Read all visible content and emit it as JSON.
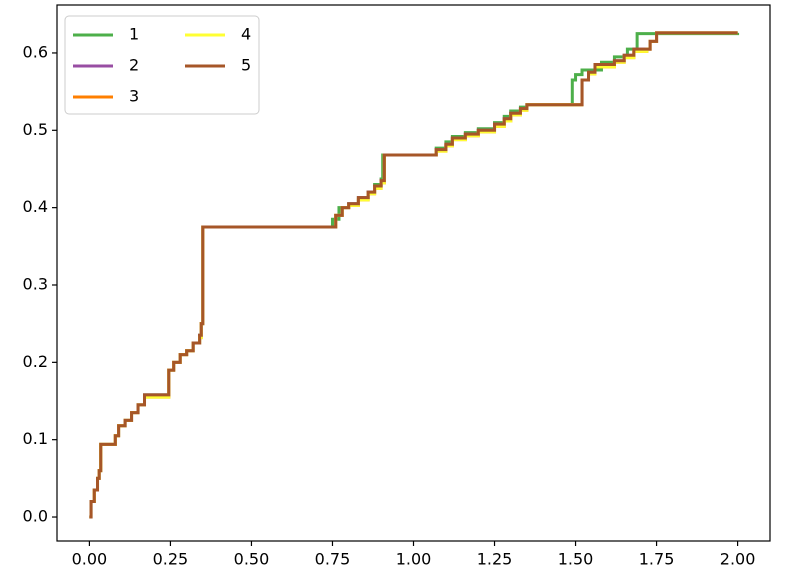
{
  "chart_data": {
    "type": "step",
    "xlim": [
      -0.1,
      2.1
    ],
    "ylim": [
      -0.031,
      0.662
    ],
    "xticks": [
      {
        "value": 0,
        "label": "0.00"
      },
      0.25,
      {
        "value": 0.5,
        "label": "0.50"
      },
      0.75,
      {
        "value": 1,
        "label": "1.00"
      },
      1.25,
      {
        "value": 1.5,
        "label": "1.50"
      },
      1.75,
      {
        "value": 2,
        "label": "2.00"
      }
    ],
    "yticks": [
      {
        "value": 0,
        "label": "0.0"
      },
      0.1,
      0.2,
      0.3,
      0.4,
      0.5,
      0.6
    ],
    "legend": "upper left",
    "series": [
      {
        "name": "1",
        "color": "#4daf4a",
        "x": [
          0,
          0.005,
          0.015,
          0.025,
          0.03,
          0.035,
          0.07,
          0.08,
          0.09,
          0.11,
          0.13,
          0.15,
          0.17,
          0.24,
          0.245,
          0.26,
          0.28,
          0.3,
          0.32,
          0.34,
          0.345,
          0.35,
          0.74,
          0.75,
          0.77,
          0.8,
          0.83,
          0.86,
          0.88,
          0.9,
          0.905,
          1.05,
          1.07,
          1.1,
          1.12,
          1.16,
          1.2,
          1.25,
          1.28,
          1.3,
          1.33,
          1.35,
          1.49,
          1.5,
          1.52,
          1.58,
          1.62,
          1.66,
          1.69,
          2.0
        ],
        "values": [
          0,
          0.02,
          0.035,
          0.05,
          0.06,
          0.094,
          0.094,
          0.105,
          0.118,
          0.125,
          0.135,
          0.145,
          0.158,
          0.158,
          0.19,
          0.2,
          0.21,
          0.215,
          0.225,
          0.235,
          0.25,
          0.375,
          0.375,
          0.385,
          0.4,
          0.405,
          0.413,
          0.42,
          0.43,
          0.437,
          0.468,
          0.468,
          0.477,
          0.485,
          0.492,
          0.497,
          0.502,
          0.51,
          0.518,
          0.525,
          0.53,
          0.533,
          0.565,
          0.572,
          0.578,
          0.588,
          0.595,
          0.605,
          0.625,
          0.626
        ]
      },
      {
        "name": "2",
        "color": "#984ea3",
        "x": [
          0,
          0.005,
          0.015,
          0.025,
          0.03,
          0.035,
          0.07,
          0.08,
          0.09,
          0.11,
          0.13,
          0.15,
          0.17,
          0.24,
          0.245,
          0.26,
          0.28,
          0.3,
          0.32,
          0.34,
          0.345,
          0.35,
          0.74,
          0.76,
          0.78,
          0.8,
          0.83,
          0.86,
          0.88,
          0.9,
          0.91,
          1.05,
          1.07,
          1.1,
          1.12,
          1.16,
          1.2,
          1.25,
          1.28,
          1.3,
          1.33,
          1.35,
          1.51,
          1.52,
          1.54,
          1.56,
          1.62,
          1.65,
          1.68,
          1.72,
          1.73,
          1.75,
          2.0
        ],
        "values": [
          0,
          0.02,
          0.035,
          0.05,
          0.06,
          0.094,
          0.094,
          0.105,
          0.118,
          0.125,
          0.135,
          0.145,
          0.158,
          0.158,
          0.19,
          0.2,
          0.21,
          0.215,
          0.225,
          0.235,
          0.25,
          0.375,
          0.375,
          0.39,
          0.4,
          0.405,
          0.413,
          0.42,
          0.428,
          0.435,
          0.468,
          0.468,
          0.475,
          0.482,
          0.49,
          0.495,
          0.5,
          0.508,
          0.515,
          0.522,
          0.528,
          0.533,
          0.533,
          0.565,
          0.575,
          0.585,
          0.59,
          0.597,
          0.605,
          0.605,
          0.615,
          0.626,
          0.626
        ]
      },
      {
        "name": "3",
        "color": "#ff7f00",
        "x": [
          0,
          0.005,
          0.015,
          0.025,
          0.03,
          0.035,
          0.07,
          0.08,
          0.09,
          0.11,
          0.13,
          0.15,
          0.17,
          0.24,
          0.245,
          0.26,
          0.28,
          0.3,
          0.32,
          0.34,
          0.345,
          0.35,
          0.74,
          0.76,
          0.78,
          0.8,
          0.83,
          0.86,
          0.88,
          0.9,
          0.91,
          1.05,
          1.07,
          1.1,
          1.12,
          1.16,
          1.2,
          1.25,
          1.28,
          1.3,
          1.33,
          1.35,
          1.51,
          1.52,
          1.54,
          1.56,
          1.62,
          1.65,
          1.68,
          1.72,
          1.73,
          1.75,
          2.0
        ],
        "values": [
          0,
          0.02,
          0.035,
          0.05,
          0.06,
          0.094,
          0.094,
          0.105,
          0.118,
          0.125,
          0.135,
          0.145,
          0.155,
          0.155,
          0.19,
          0.2,
          0.21,
          0.215,
          0.225,
          0.232,
          0.25,
          0.375,
          0.375,
          0.39,
          0.4,
          0.403,
          0.41,
          0.418,
          0.425,
          0.432,
          0.468,
          0.468,
          0.473,
          0.48,
          0.488,
          0.493,
          0.498,
          0.505,
          0.512,
          0.52,
          0.526,
          0.533,
          0.533,
          0.565,
          0.573,
          0.582,
          0.588,
          0.594,
          0.602,
          0.605,
          0.615,
          0.626,
          0.626
        ]
      },
      {
        "name": "4",
        "color": "#ffff33",
        "x": [
          0,
          0.005,
          0.015,
          0.025,
          0.03,
          0.035,
          0.07,
          0.08,
          0.09,
          0.11,
          0.13,
          0.15,
          0.17,
          0.24,
          0.245,
          0.26,
          0.28,
          0.3,
          0.32,
          0.34,
          0.345,
          0.35,
          0.74,
          0.76,
          0.78,
          0.8,
          0.83,
          0.86,
          0.88,
          0.9,
          0.91,
          1.05,
          1.07,
          1.1,
          1.12,
          1.16,
          1.2,
          1.25,
          1.28,
          1.3,
          1.33,
          1.35,
          1.51,
          1.52,
          1.54,
          1.56,
          1.62,
          1.65,
          1.68,
          1.72,
          1.73,
          1.75,
          2.0
        ],
        "values": [
          0,
          0.02,
          0.035,
          0.05,
          0.06,
          0.094,
          0.094,
          0.105,
          0.118,
          0.125,
          0.135,
          0.145,
          0.155,
          0.155,
          0.19,
          0.2,
          0.21,
          0.215,
          0.225,
          0.232,
          0.25,
          0.375,
          0.375,
          0.39,
          0.4,
          0.403,
          0.41,
          0.418,
          0.425,
          0.432,
          0.468,
          0.468,
          0.473,
          0.48,
          0.488,
          0.493,
          0.498,
          0.505,
          0.512,
          0.52,
          0.526,
          0.533,
          0.533,
          0.565,
          0.573,
          0.582,
          0.588,
          0.594,
          0.602,
          0.605,
          0.615,
          0.626,
          0.626
        ]
      },
      {
        "name": "5",
        "color": "#a65628",
        "x": [
          0,
          0.005,
          0.015,
          0.025,
          0.03,
          0.035,
          0.07,
          0.08,
          0.09,
          0.11,
          0.13,
          0.15,
          0.17,
          0.24,
          0.245,
          0.26,
          0.28,
          0.3,
          0.32,
          0.34,
          0.345,
          0.35,
          0.74,
          0.76,
          0.78,
          0.8,
          0.83,
          0.86,
          0.88,
          0.9,
          0.91,
          1.05,
          1.07,
          1.1,
          1.12,
          1.16,
          1.2,
          1.25,
          1.28,
          1.3,
          1.33,
          1.35,
          1.51,
          1.52,
          1.54,
          1.56,
          1.62,
          1.65,
          1.68,
          1.72,
          1.73,
          1.75,
          2.0
        ],
        "values": [
          0,
          0.02,
          0.035,
          0.05,
          0.06,
          0.094,
          0.094,
          0.105,
          0.118,
          0.125,
          0.135,
          0.145,
          0.158,
          0.158,
          0.19,
          0.2,
          0.21,
          0.215,
          0.225,
          0.235,
          0.25,
          0.375,
          0.375,
          0.39,
          0.4,
          0.405,
          0.413,
          0.42,
          0.428,
          0.435,
          0.468,
          0.468,
          0.475,
          0.482,
          0.49,
          0.495,
          0.5,
          0.508,
          0.515,
          0.522,
          0.528,
          0.533,
          0.533,
          0.565,
          0.575,
          0.585,
          0.59,
          0.597,
          0.605,
          0.605,
          0.615,
          0.626,
          0.626
        ]
      }
    ]
  }
}
